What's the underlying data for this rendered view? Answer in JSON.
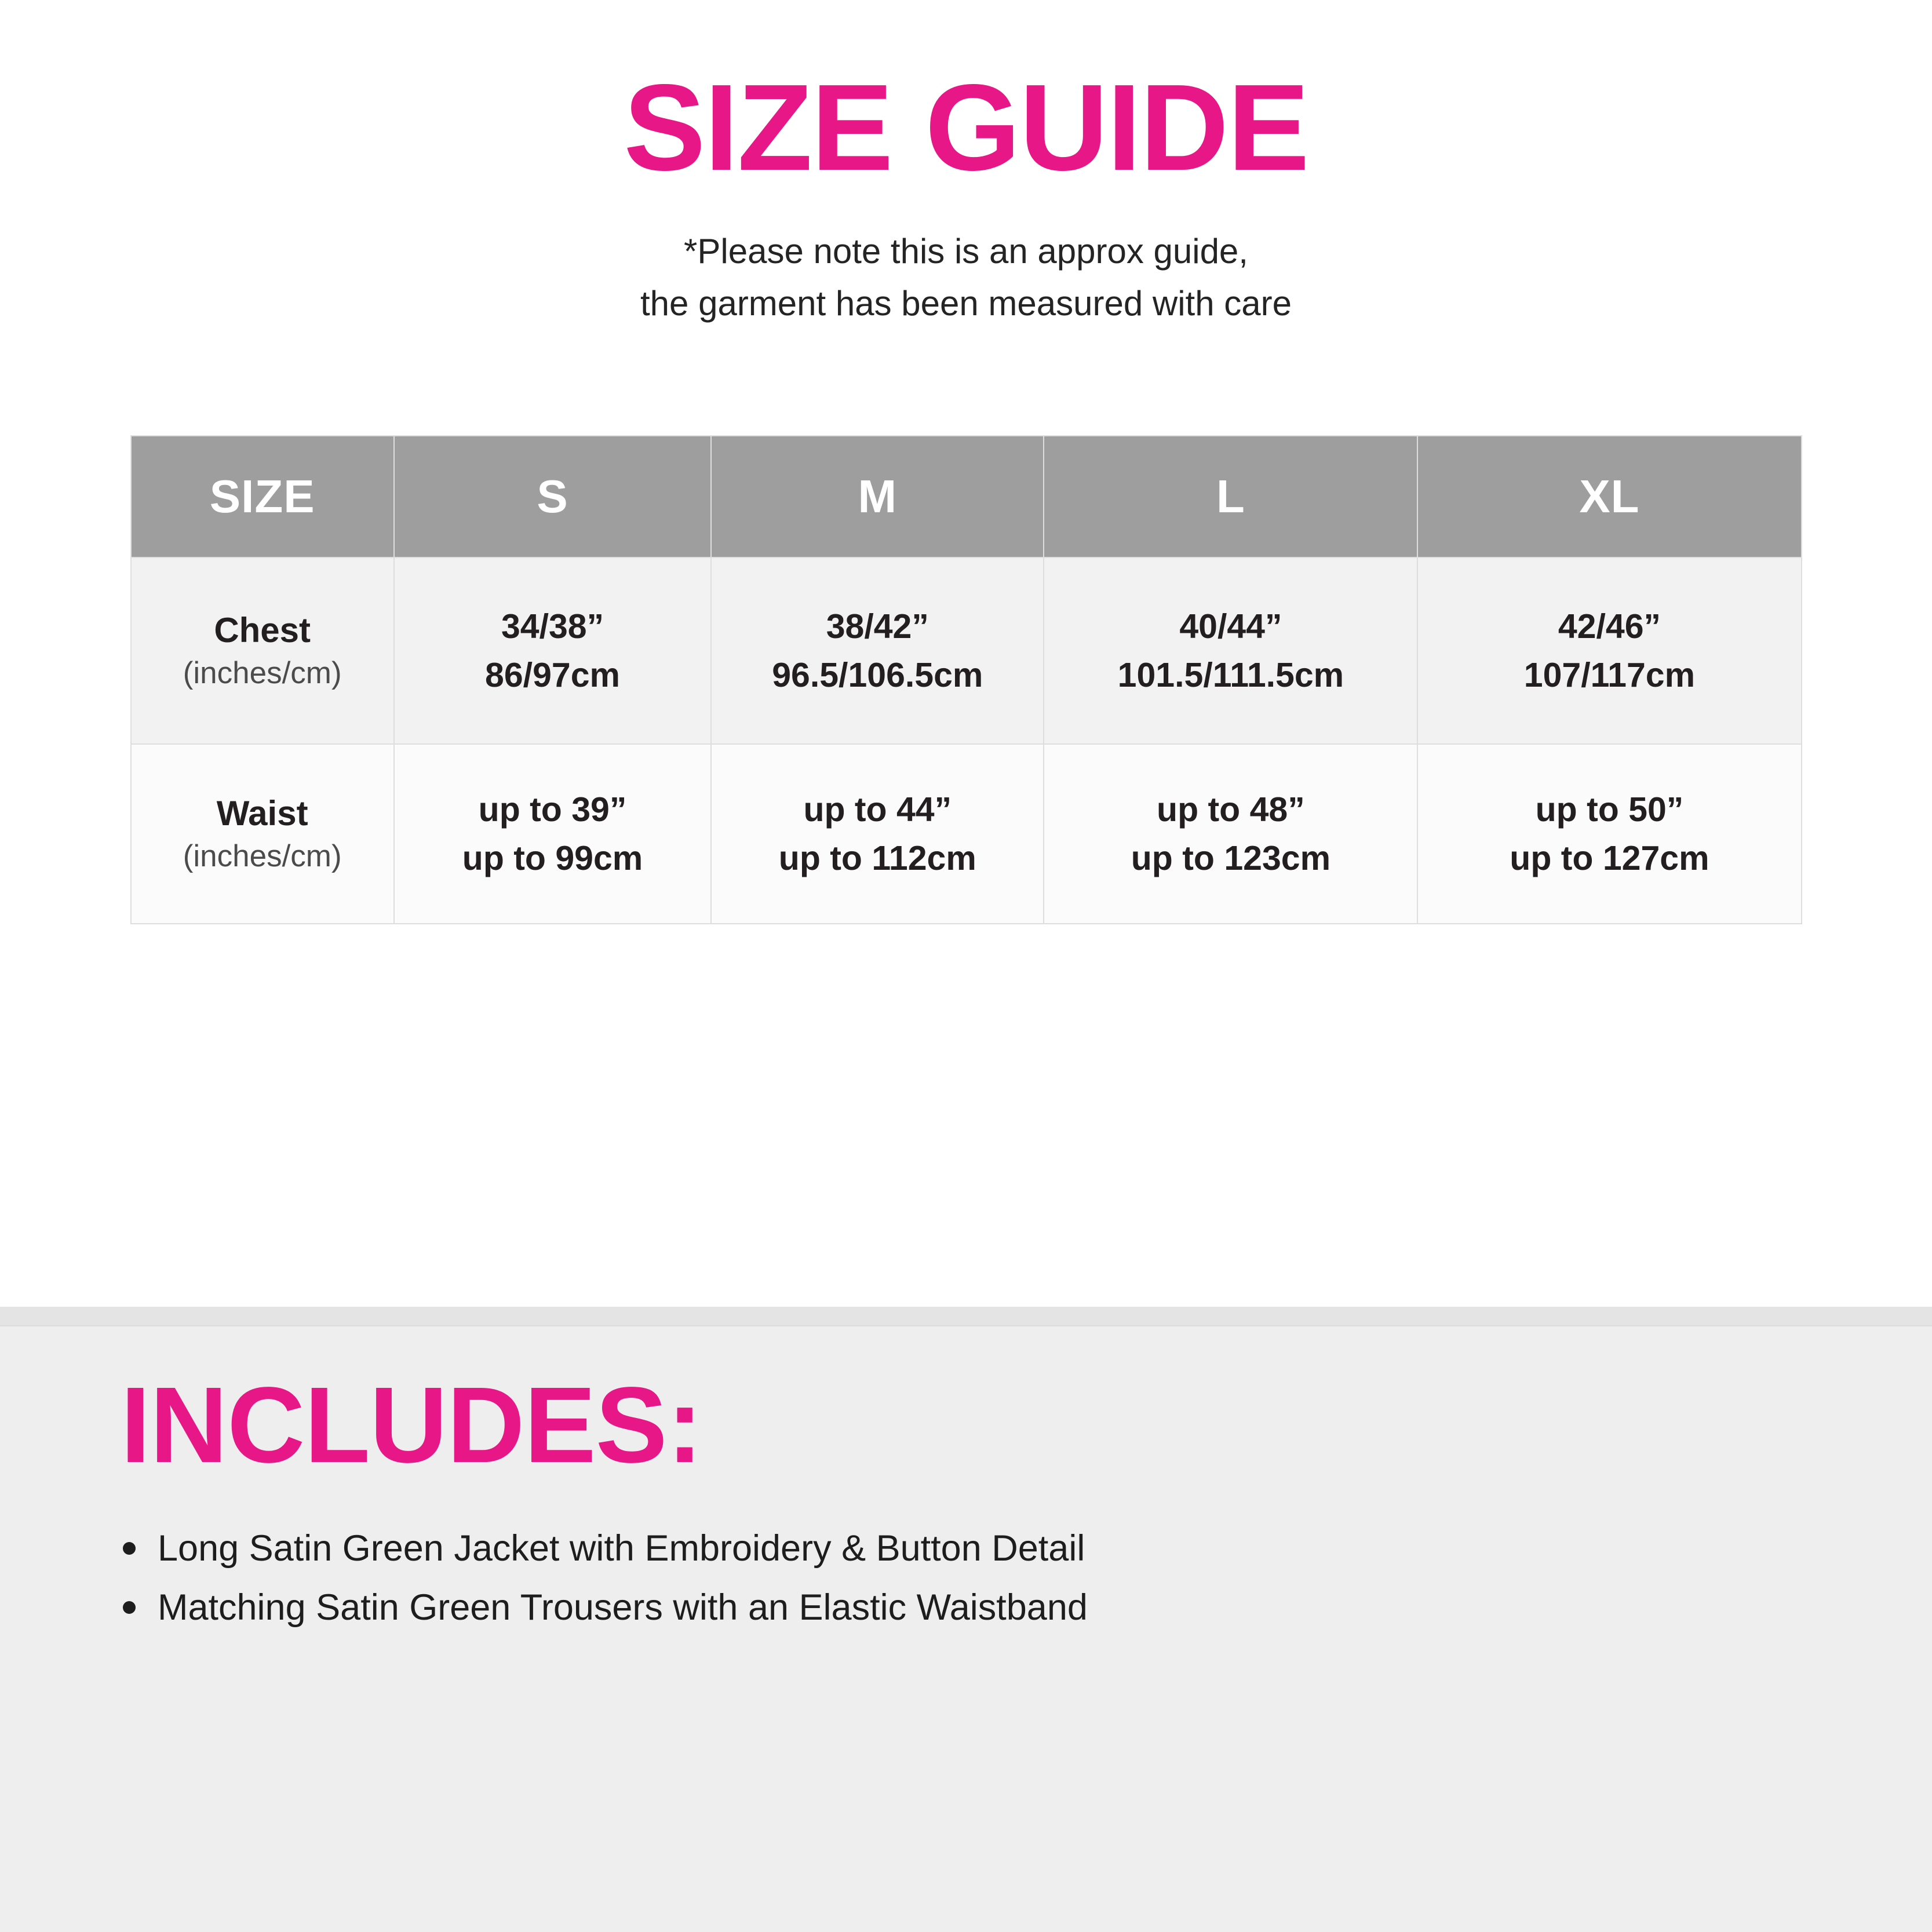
{
  "header": {
    "title": "SIZE GUIDE",
    "note_line1": "*Please note this is an approx guide,",
    "note_line2": "the garment has been measured with care"
  },
  "size_table": {
    "columns": [
      "SIZE",
      "S",
      "M",
      "L",
      "XL"
    ],
    "rows": [
      {
        "label": "Chest",
        "sublabel": "(inches/cm)",
        "values": [
          [
            "34/38”",
            "86/97cm"
          ],
          [
            "38/42”",
            "96.5/106.5cm"
          ],
          [
            "40/44”",
            "101.5/111.5cm"
          ],
          [
            "42/46”",
            "107/117cm"
          ]
        ]
      },
      {
        "label": "Waist",
        "sublabel": "(inches/cm)",
        "values": [
          [
            "up to 39”",
            "up to 99cm"
          ],
          [
            "up to 44”",
            "up to 112cm"
          ],
          [
            "up to 48”",
            "up to 123cm"
          ],
          [
            "up to 50”",
            "up to 127cm"
          ]
        ]
      }
    ]
  },
  "includes": {
    "heading": "INCLUDES:",
    "items": [
      "Long Satin Green Jacket with Embroidery & Button Detail",
      "Matching Satin Green Trousers with an Elastic Waistband"
    ]
  },
  "colors": {
    "accent_pink": "#E81788",
    "table_header_gray": "#9E9E9E",
    "row_chest_bg": "#F2F2F2",
    "row_waist_bg": "#FBFBFB",
    "table_border": "#DEDEDE",
    "bottom_section_bg": "#EEEEEE",
    "text_dark": "#231F20"
  }
}
